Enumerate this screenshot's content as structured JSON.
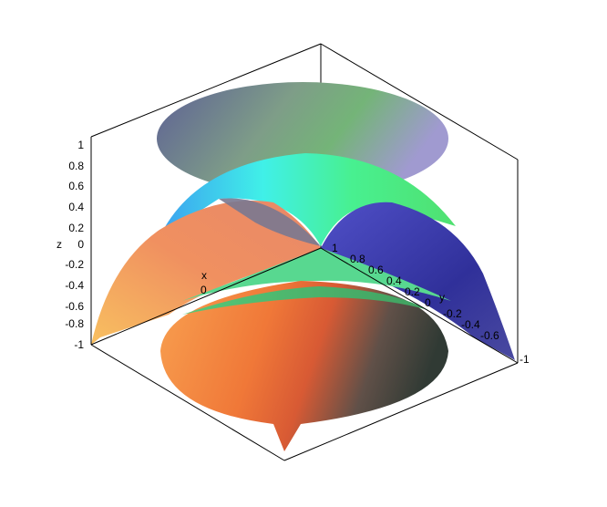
{
  "chart_data": {
    "type": "surface3d",
    "title": "",
    "axes": {
      "x": {
        "label": "x",
        "ticks": [
          "-1",
          "-0.8",
          "-0.6",
          "-0.4",
          "-0.2",
          "0"
        ]
      },
      "y": {
        "label": "y",
        "ticks": [
          "1",
          "0.8",
          "0.6",
          "0.4",
          "0.2",
          "0",
          "-0.2",
          "-0.4",
          "-0.6",
          "-1"
        ]
      },
      "z": {
        "label": "z",
        "ticks": [
          "1",
          "0.8",
          "0.6",
          "0.4",
          "0.2",
          "0",
          "-0.2",
          "-0.4",
          "-0.6",
          "-0.8",
          "-1"
        ]
      }
    },
    "ranges": {
      "x": [
        -1,
        1
      ],
      "y": [
        -1,
        1
      ],
      "z": [
        -1,
        1
      ]
    },
    "surfaces": [
      {
        "name": "top-disc",
        "kind": "disc",
        "z": 1,
        "radius": 1
      },
      {
        "name": "paraboloid",
        "kind": "paraboloid",
        "z_apex": 1,
        "z_rim": -1
      },
      {
        "name": "bottom-disc",
        "kind": "disc",
        "z": -1,
        "radius": 1
      }
    ],
    "colors": {
      "top_left": "#6a6a9a",
      "top_mid": "#7aa870",
      "top_right": "#9a9ac8",
      "para_cyan": "#40f0e0",
      "para_green": "#48f088",
      "para_orange": "#f4a060",
      "para_peach": "#f4b070",
      "para_blue": "#3838b0",
      "para_purple": "#7060b0",
      "bot_orange": "#f08838",
      "bot_red": "#e85030",
      "bot_dark": "#404038",
      "bot_green": "#58c878"
    }
  }
}
